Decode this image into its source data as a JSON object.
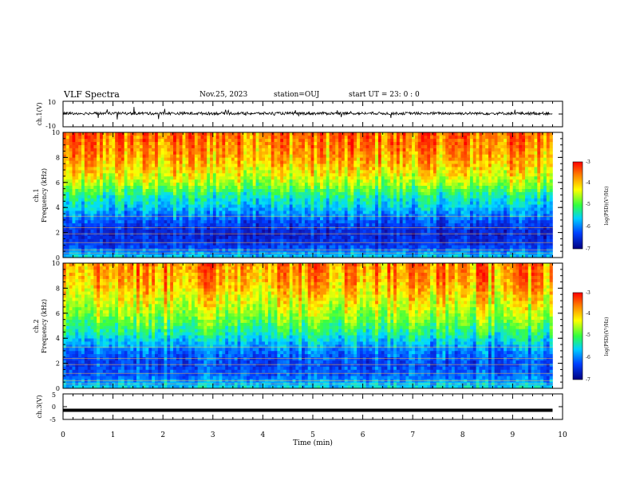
{
  "header": {
    "title": "VLF Spectra",
    "date": "Nov.25, 2023",
    "station": "station=OUJ",
    "start": "start  UT  =   23: 0  : 0"
  },
  "colors": {
    "scale": [
      "#1a00a0",
      "#0050ff",
      "#00d0ff",
      "#30ff30",
      "#ffff00",
      "#ff8000",
      "#ff0000"
    ]
  },
  "chart_data": [
    {
      "type": "line",
      "panel": "ch1-waveform",
      "ylabel": "ch.1(V)",
      "ylim": [
        -10,
        10
      ],
      "yticks": [
        "10",
        "-10"
      ],
      "series_level_v": 0.5
    },
    {
      "type": "heatmap",
      "panel": "ch1-spectrogram",
      "ylabel_line1": "ch.1",
      "ylabel_line2": "Frequency  (kHz)",
      "ylim": [
        0,
        10
      ],
      "yticks": [
        "0",
        "2",
        "4",
        "6",
        "8",
        "10"
      ],
      "freq_khz": [
        0,
        1,
        2,
        3,
        4,
        5,
        6,
        7,
        8,
        9,
        10
      ],
      "log_psd_profile": [
        -5.6,
        -6.4,
        -6.6,
        -6.2,
        -5.7,
        -5.3,
        -4.6,
        -4.2,
        -3.9,
        -3.7,
        -3.6
      ],
      "colorbar": {
        "label": "log(PSD)(V²/Hz)",
        "ticks": [
          "-3",
          "-4",
          "-5",
          "-6",
          "-7"
        ],
        "range": [
          -7,
          -3
        ]
      }
    },
    {
      "type": "heatmap",
      "panel": "ch2-spectrogram",
      "ylabel_line1": "ch.2",
      "ylabel_line2": "Frequency  (kHz)",
      "ylim": [
        0,
        10
      ],
      "yticks": [
        "0",
        "2",
        "4",
        "6",
        "8",
        "10"
      ],
      "freq_khz": [
        0,
        1,
        2,
        3,
        4,
        5,
        6,
        7,
        8,
        9,
        10
      ],
      "log_psd_profile": [
        -5.5,
        -6.1,
        -6.3,
        -6.0,
        -5.5,
        -5.0,
        -4.6,
        -4.3,
        -4.0,
        -3.8,
        -3.7
      ],
      "colorbar": {
        "label": "log(PSD)(V²/Hz)",
        "ticks": [
          "-3",
          "-4",
          "-5",
          "-6",
          "-7"
        ],
        "range": [
          -7,
          -3
        ]
      }
    },
    {
      "type": "line",
      "panel": "ch3-waveform",
      "ylabel": "ch.3(V)",
      "ylim": [
        -5,
        5
      ],
      "yticks": [
        "5",
        "0",
        "-5"
      ],
      "level_v": -1.4
    }
  ],
  "x_axis": {
    "label": "Time  (min)",
    "range": [
      0,
      10
    ],
    "data_end": 9.8,
    "ticks": [
      "0",
      "1",
      "2",
      "3",
      "4",
      "5",
      "6",
      "7",
      "8",
      "9",
      "10"
    ]
  }
}
